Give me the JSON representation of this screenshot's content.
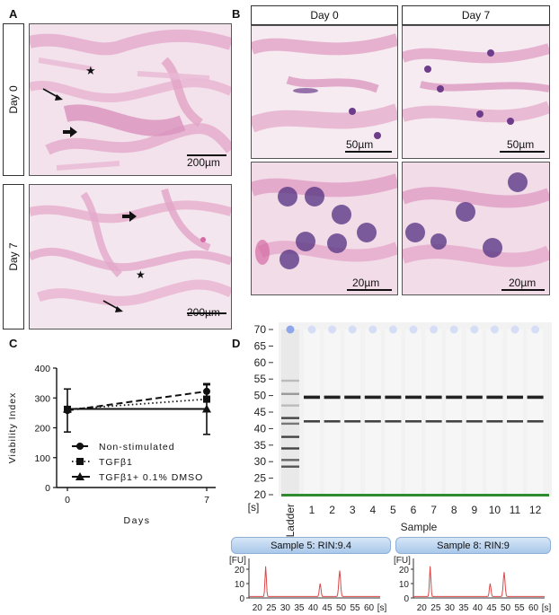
{
  "panels": {
    "A": {
      "letter": "A",
      "rows": [
        {
          "label": "Day 0",
          "scale": "200µm"
        },
        {
          "label": "Day 7",
          "scale": "200µm"
        }
      ]
    },
    "B": {
      "letter": "B",
      "columns": [
        "Day 0",
        "Day 7"
      ],
      "scales": [
        "50µm",
        "50µm",
        "20µm",
        "20µm"
      ]
    },
    "C": {
      "letter": "C"
    },
    "D": {
      "letter": "D",
      "y_ticks": [
        "70",
        "65",
        "60",
        "55",
        "50",
        "45",
        "40",
        "35",
        "30",
        "25",
        "20"
      ],
      "y_unit": "[s]",
      "ladder_label": "Ladder",
      "sample_numbers": [
        "1",
        "2",
        "3",
        "4",
        "5",
        "6",
        "7",
        "8",
        "9",
        "10",
        "11",
        "12"
      ],
      "sample_title": "Sample",
      "electropherograms": [
        {
          "title": "Sample 5: RIN:9.4",
          "unit": "[FU]",
          "y_ticks": [
            "20",
            "10",
            "0"
          ],
          "x_ticks": [
            "20",
            "25",
            "30",
            "35",
            "40",
            "45",
            "50",
            "55",
            "60"
          ],
          "x_unit": "[s]"
        },
        {
          "title": "Sample 8: RIN:9",
          "unit": "[FU]",
          "y_ticks": [
            "20",
            "10",
            "0"
          ],
          "x_ticks": [
            "20",
            "25",
            "30",
            "35",
            "40",
            "45",
            "50",
            "55",
            "60"
          ],
          "x_unit": "[s]"
        }
      ]
    }
  },
  "chart_data": {
    "type": "line",
    "ylabel": "Viability Index",
    "xlabel": "Days",
    "xlim": [
      0,
      7
    ],
    "ylim": [
      0,
      400
    ],
    "x_ticks": [
      0,
      7
    ],
    "y_ticks": [
      0,
      100,
      200,
      300,
      400
    ],
    "x": [
      0,
      7
    ],
    "series": [
      {
        "name": "Non-stimulated",
        "values": [
          258,
          322
        ],
        "error": [
          72,
          22
        ],
        "line": "dashed",
        "marker": "circle"
      },
      {
        "name": "TGFβ1",
        "values": [
          262,
          296
        ],
        "error": [
          0,
          0
        ],
        "line": "dotted",
        "marker": "square"
      },
      {
        "name": "TGFβ1+ 0.1% DMSO",
        "values": [
          263,
          263
        ],
        "error": [
          0,
          85
        ],
        "line": "solid",
        "marker": "triangle"
      }
    ],
    "legend": "bottom-left"
  }
}
